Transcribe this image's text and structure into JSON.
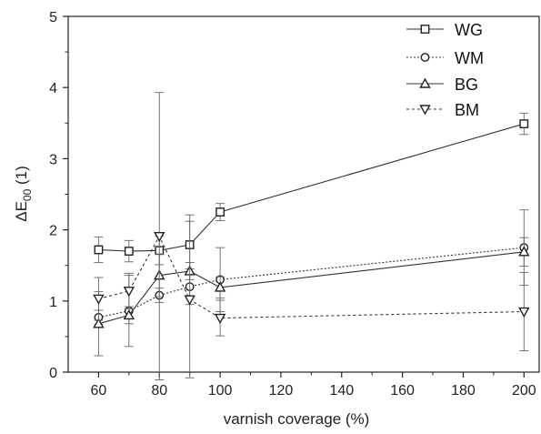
{
  "chart_data": {
    "type": "line",
    "xlabel": "varnish coverage (%)",
    "ylabel": "ΔE00 (1)",
    "ylabel_main": "ΔE",
    "ylabel_sub": "00",
    "ylabel_unit": " (1)",
    "xlim": [
      50,
      205
    ],
    "ylim": [
      0,
      5
    ],
    "x_ticks": [
      60,
      80,
      100,
      120,
      140,
      160,
      180,
      200
    ],
    "y_ticks": [
      0,
      1,
      2,
      3,
      4,
      5
    ],
    "grid": false,
    "legend_position": "top-right",
    "series": [
      {
        "name": "WG",
        "marker": "square",
        "line": "solid",
        "x": [
          60,
          70,
          80,
          90,
          100,
          200
        ],
        "y": [
          1.72,
          1.7,
          1.71,
          1.79,
          2.25,
          3.49
        ],
        "err": [
          0.18,
          0.15,
          0.2,
          0.42,
          0.12,
          0.15
        ]
      },
      {
        "name": "WM",
        "marker": "circle",
        "line": "dotted",
        "x": [
          60,
          70,
          80,
          90,
          100,
          200
        ],
        "y": [
          0.77,
          0.86,
          1.08,
          1.2,
          1.3,
          1.75
        ],
        "err": [
          0.1,
          0.5,
          0.1,
          0.25,
          0.45,
          0.53
        ]
      },
      {
        "name": "BG",
        "marker": "triangle-up",
        "line": "solid",
        "x": [
          60,
          70,
          80,
          90,
          100,
          200
        ],
        "y": [
          0.68,
          0.8,
          1.36,
          1.42,
          1.19,
          1.69
        ],
        "err": [
          0.45,
          0.12,
          0.3,
          0.12,
          0.15,
          0.2
        ]
      },
      {
        "name": "BM",
        "marker": "triangle-down",
        "line": "dashed",
        "x": [
          60,
          70,
          80,
          90,
          100,
          200
        ],
        "y": [
          1.03,
          1.14,
          1.91,
          1.02,
          0.76,
          0.85
        ],
        "err": [
          0.3,
          0.25,
          2.02,
          1.1,
          0.25,
          0.55
        ]
      }
    ]
  }
}
